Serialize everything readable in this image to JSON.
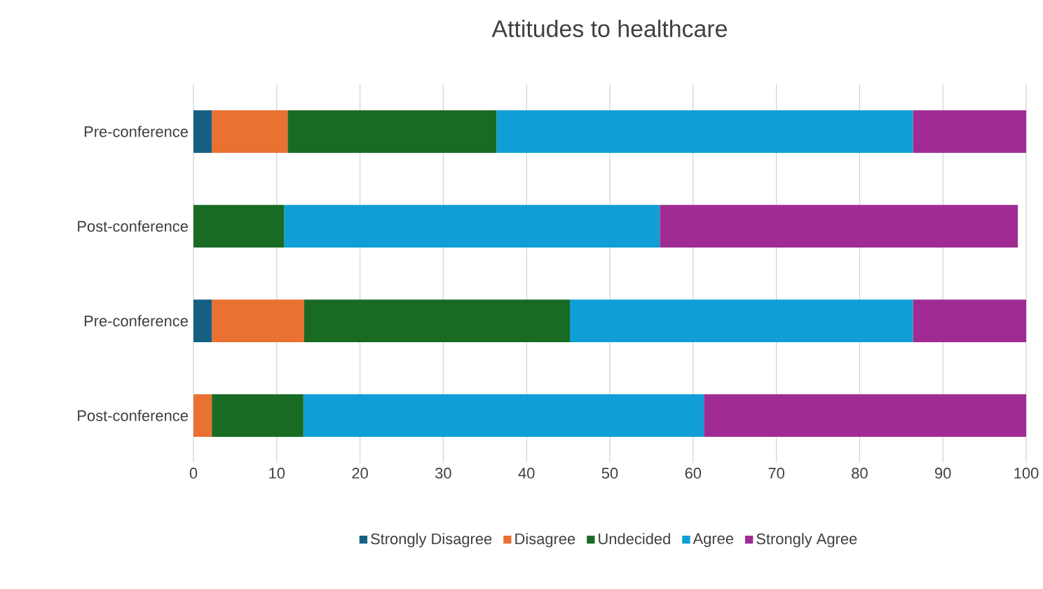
{
  "chart_data": {
    "type": "bar",
    "orientation": "horizontal",
    "stacked": true,
    "title": "Attitudes to healthcare",
    "categories": [
      "Pre-conference",
      "Post-conference",
      "Pre-conference",
      "Post-conference"
    ],
    "series": [
      {
        "name": "Strongly Disagree",
        "color": "#156082",
        "values": [
          2.2,
          0,
          2.2,
          0
        ]
      },
      {
        "name": "Disagree",
        "color": "#e97132",
        "values": [
          9.1,
          0,
          11.1,
          2.2
        ]
      },
      {
        "name": "Undecided",
        "color": "#196b24",
        "values": [
          25.1,
          10.9,
          31.9,
          11.0
        ]
      },
      {
        "name": "Agree",
        "color": "#0f9ed5",
        "values": [
          50.0,
          45.1,
          41.2,
          48.1
        ]
      },
      {
        "name": "Strongly Agree",
        "color": "#a02b93",
        "values": [
          13.6,
          43.0,
          13.6,
          38.7
        ]
      }
    ],
    "xlim": [
      0,
      100
    ],
    "xticks": [
      0,
      10,
      20,
      30,
      40,
      50,
      60,
      70,
      80,
      90,
      100
    ],
    "grid": "x",
    "legend": "bottom"
  }
}
